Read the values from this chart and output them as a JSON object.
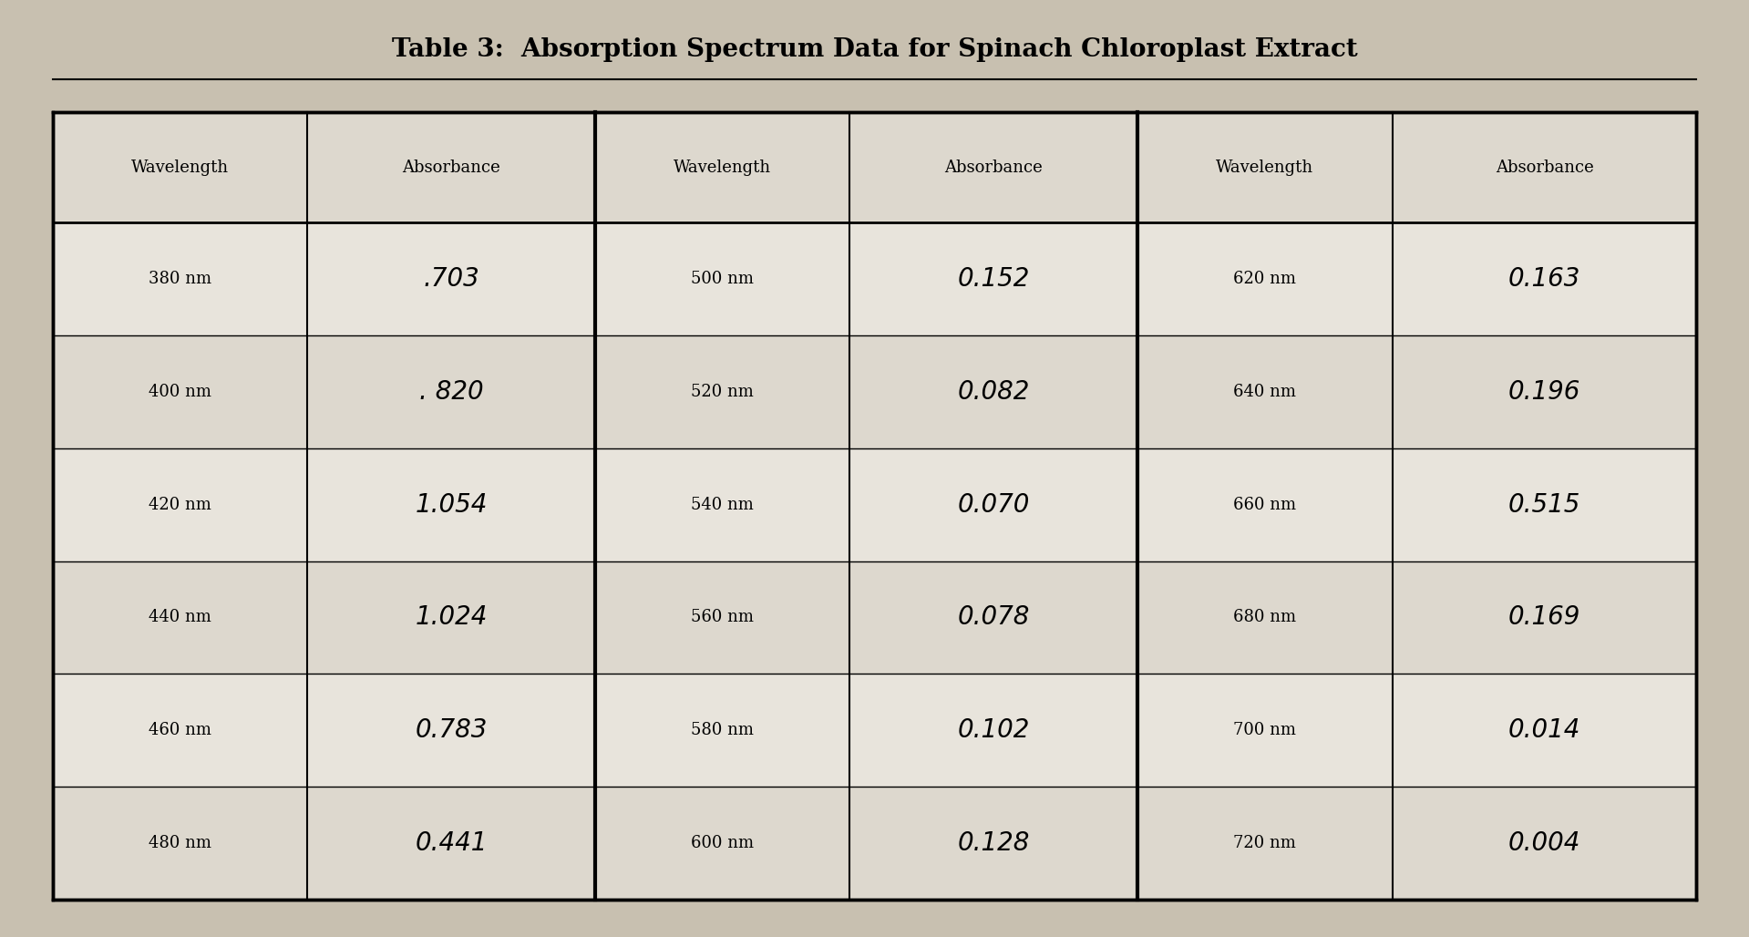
{
  "title": "Table 3:  Absorption Spectrum Data for Spinach Chloroplast Extract",
  "background_color": "#c8c0b0",
  "table_bg_light": "#ddd8ce",
  "table_bg_white": "#e8e4dc",
  "col1_wavelengths": [
    "380 nm",
    "400 nm",
    "420 nm",
    "440 nm",
    "460 nm",
    "480 nm"
  ],
  "col1_absorbances": [
    ".703",
    ". 820",
    "1.054",
    "1.024",
    "0.783",
    "0.441"
  ],
  "col2_wavelengths": [
    "500 nm",
    "520 nm",
    "540 nm",
    "560 nm",
    "580 nm",
    "600 nm"
  ],
  "col2_absorbances": [
    "0.152",
    "0.082",
    "0.070",
    "0.078",
    "0.102",
    "0.128"
  ],
  "col3_wavelengths": [
    "620 nm",
    "640 nm",
    "660 nm",
    "680 nm",
    "700 nm",
    "720 nm"
  ],
  "col3_absorbances": [
    "0.163",
    "0.196",
    "0.515",
    "0.169",
    "0.014",
    "0.004"
  ],
  "header_wavelength": "Wavelength",
  "header_absorbance": "Absorbance"
}
